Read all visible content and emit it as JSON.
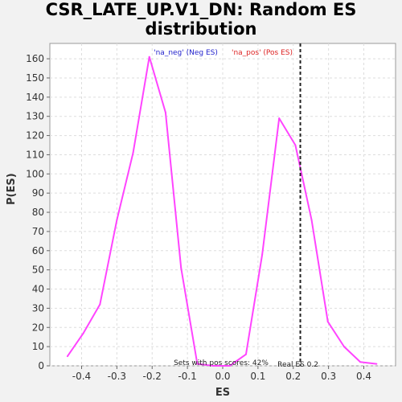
{
  "chart_data": {
    "type": "line",
    "title_lines": [
      "CSR_LATE_UP.V1_DN: Random ES",
      "distribution"
    ],
    "xlabel": "ES",
    "ylabel": "P(ES)",
    "xlim": [
      -0.49,
      0.49
    ],
    "ylim": [
      0,
      168
    ],
    "xticks": [
      -0.4,
      -0.3,
      -0.2,
      -0.1,
      0.0,
      0.1,
      0.2,
      0.3,
      0.4
    ],
    "xtick_labels": [
      "-0.4",
      "-0.3",
      "-0.2",
      "-0.1",
      "0.0",
      "0.1",
      "0.2",
      "0.3",
      "0.4"
    ],
    "yticks": [
      0,
      10,
      20,
      30,
      40,
      50,
      60,
      70,
      80,
      90,
      100,
      110,
      120,
      130,
      140,
      150,
      160
    ],
    "ytick_labels": [
      "0",
      "10",
      "20",
      "30",
      "40",
      "50",
      "60",
      "70",
      "80",
      "90",
      "100",
      "110",
      "120",
      "130",
      "140",
      "150",
      "160"
    ],
    "grid": true,
    "series": [
      {
        "color": "#ff44ff",
        "x": [
          -0.44,
          -0.395,
          -0.348,
          -0.3,
          -0.254,
          -0.208,
          -0.162,
          -0.118,
          -0.072,
          -0.026,
          0.02,
          0.066,
          0.112,
          0.16,
          0.206,
          0.252,
          0.298,
          0.344,
          0.39,
          0.436
        ],
        "y": [
          5,
          17,
          32,
          76,
          111,
          161,
          132,
          51,
          1,
          0,
          0,
          6,
          58,
          129,
          115,
          76,
          23,
          10,
          2,
          1
        ]
      }
    ],
    "legend": [
      {
        "label": "'na_neg' (Neg ES)",
        "color": "#2222cc"
      },
      {
        "label": "'na_pos' (Pos ES)",
        "color": "#dd2222"
      }
    ],
    "legend_placement": "top-center",
    "real_es": {
      "value": 0.22,
      "label": "Real ES 0.2"
    },
    "annotation": "Sets with pos scores: 42%"
  }
}
